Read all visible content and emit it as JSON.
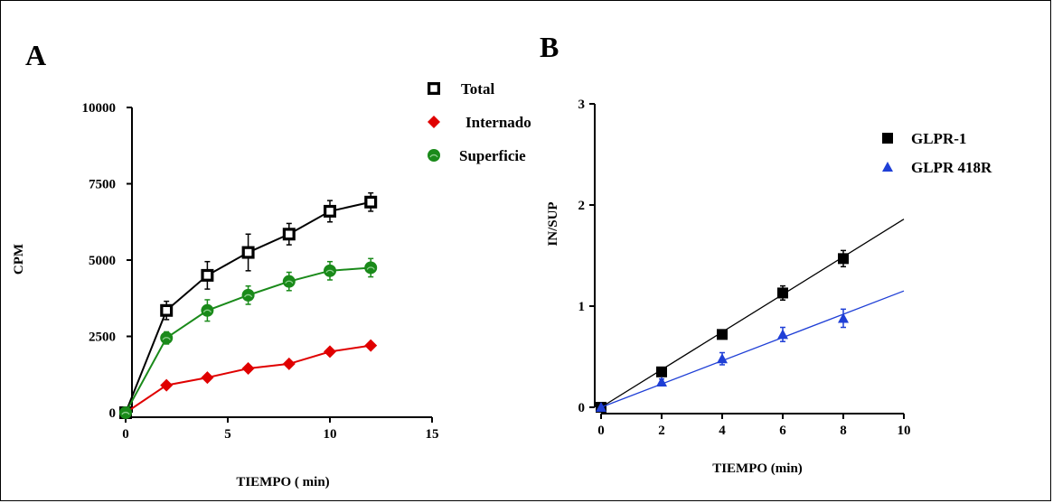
{
  "colors": {
    "black": "#000000",
    "red": "#e00000",
    "green": "#1a8a1a",
    "blue": "#1f3fd6"
  },
  "chart_data": [
    {
      "panel": "A",
      "type": "line",
      "xlabel": "TIEMPO ( min)",
      "ylabel": "CPM",
      "xlim": [
        0,
        15
      ],
      "ylim": [
        0,
        10000
      ],
      "xticks": [
        0,
        5,
        10,
        15
      ],
      "yticks": [
        0,
        2500,
        5000,
        7500,
        10000
      ],
      "x": [
        0,
        2,
        4,
        6,
        8,
        10,
        12
      ],
      "legend_position": "top-right",
      "series": [
        {
          "name": "Total",
          "marker": "square-open",
          "color": "#000000",
          "values": [
            0,
            3350,
            4500,
            5250,
            5850,
            6600,
            6900
          ],
          "errors": [
            0,
            300,
            450,
            600,
            350,
            350,
            300
          ]
        },
        {
          "name": "Internado",
          "marker": "diamond",
          "color": "#e00000",
          "values": [
            0,
            900,
            1150,
            1450,
            1600,
            2000,
            2200
          ],
          "errors": [
            0,
            80,
            80,
            80,
            80,
            80,
            80
          ]
        },
        {
          "name": "Superficie",
          "marker": "circle",
          "color": "#1a8a1a",
          "values": [
            0,
            2450,
            3350,
            3850,
            4300,
            4650,
            4750
          ],
          "errors": [
            0,
            200,
            350,
            300,
            300,
            300,
            300
          ]
        }
      ]
    },
    {
      "panel": "B",
      "type": "scatter",
      "xlabel": "TIEMPO (min)",
      "ylabel": "IN/SUP",
      "xlim": [
        0,
        10
      ],
      "ylim": [
        0,
        3
      ],
      "xticks": [
        0,
        2,
        4,
        6,
        8,
        10
      ],
      "yticks": [
        0,
        1,
        2,
        3
      ],
      "x": [
        0,
        2,
        4,
        6,
        8
      ],
      "legend_position": "top-right",
      "series": [
        {
          "name": "GLPR-1",
          "marker": "square",
          "color": "#000000",
          "values": [
            0,
            0.35,
            0.72,
            1.13,
            1.47
          ],
          "errors": [
            0,
            0.03,
            0.03,
            0.07,
            0.08
          ],
          "fit": {
            "slope": 0.186,
            "intercept": 0,
            "x_end": 10
          }
        },
        {
          "name": "GLPR 418R",
          "marker": "triangle",
          "color": "#1f3fd6",
          "values": [
            0,
            0.25,
            0.48,
            0.72,
            0.88
          ],
          "errors": [
            0,
            0.03,
            0.06,
            0.07,
            0.09
          ],
          "fit": {
            "slope": 0.115,
            "intercept": 0,
            "x_end": 10
          }
        }
      ]
    }
  ]
}
